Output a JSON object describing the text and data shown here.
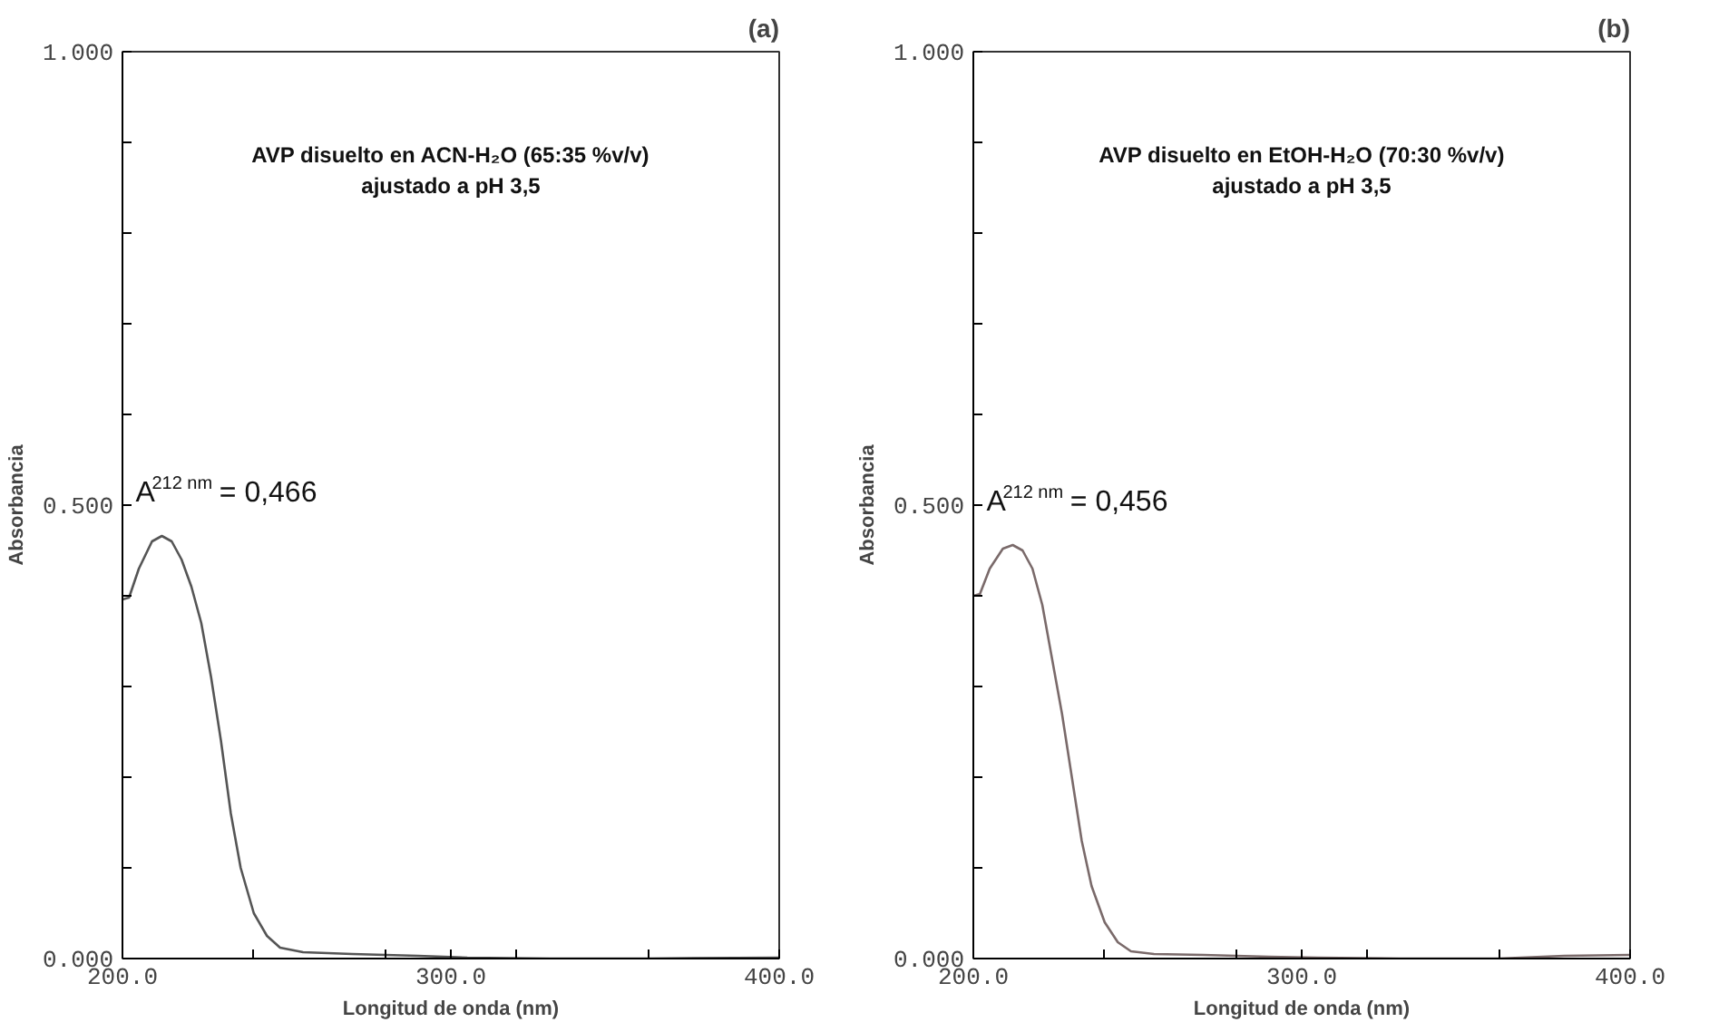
{
  "chart_data": [
    {
      "type": "line",
      "title": "(a)",
      "xlabel": "Longitud de onda (nm)",
      "ylabel": "Absorbancia",
      "x": [
        200,
        202,
        205,
        209,
        212,
        215,
        218,
        221,
        224,
        227,
        230,
        233,
        236,
        240,
        244,
        248,
        255,
        270,
        290,
        305,
        330,
        360,
        400
      ],
      "series": [
        {
          "color": "#555555",
          "values": [
            0.396,
            0.398,
            0.43,
            0.46,
            0.466,
            0.46,
            0.44,
            0.41,
            0.37,
            0.31,
            0.24,
            0.16,
            0.1,
            0.05,
            0.025,
            0.012,
            0.007,
            0.005,
            0.003,
            0.001,
            0.0,
            0.0,
            0.001
          ]
        }
      ],
      "xlim": [
        200,
        400
      ],
      "ylim": [
        0,
        1
      ],
      "xticks": [
        {
          "value": 200,
          "label": "200.0"
        },
        {
          "value": 240,
          "label": null
        },
        {
          "value": 280,
          "label": null
        },
        {
          "value": 300,
          "label": "300.0"
        },
        {
          "value": 320,
          "label": null
        },
        {
          "value": 360,
          "label": null
        },
        {
          "value": 400,
          "label": "400.0"
        }
      ],
      "yticks": [
        {
          "value": 0,
          "label": "0.000"
        },
        {
          "value": 0.1,
          "label": null
        },
        {
          "value": 0.2,
          "label": null
        },
        {
          "value": 0.3,
          "label": null
        },
        {
          "value": 0.4,
          "label": null
        },
        {
          "value": 0.5,
          "label": "0.500"
        },
        {
          "value": 0.6,
          "label": null
        },
        {
          "value": 0.7,
          "label": null
        },
        {
          "value": 0.8,
          "label": null
        },
        {
          "value": 0.9,
          "label": null
        },
        {
          "value": 1,
          "label": "1.000"
        }
      ],
      "grid": false,
      "marker": "none",
      "line_style": "solid",
      "annotations": [
        "AVP disuelto en ACN-H₂O (65:35 %v/v)\najustado a pH 3,5",
        {
          "text": "A$^{212 nm}$= 0,466",
          "x": 212,
          "y": 0.466
        }
      ]
    },
    {
      "type": "line",
      "title": "(b)",
      "xlabel": "Longitud de onda (nm)",
      "ylabel": "Absorbancia",
      "x": [
        200,
        202,
        205,
        209,
        212,
        215,
        218,
        221,
        224,
        227,
        230,
        233,
        236,
        240,
        244,
        248,
        255,
        270,
        290,
        305,
        330,
        360,
        380,
        400
      ],
      "series": [
        {
          "color": "#7a6a6a",
          "values": [
            0.4,
            0.402,
            0.43,
            0.452,
            0.456,
            0.45,
            0.43,
            0.39,
            0.33,
            0.27,
            0.2,
            0.13,
            0.08,
            0.04,
            0.018,
            0.008,
            0.005,
            0.004,
            0.002,
            0.001,
            0.0,
            0.0,
            0.003,
            0.004
          ]
        }
      ],
      "xlim": [
        200,
        400
      ],
      "ylim": [
        0,
        1
      ],
      "xticks": [
        {
          "value": 200,
          "label": "200.0"
        },
        {
          "value": 240,
          "label": null
        },
        {
          "value": 280,
          "label": null
        },
        {
          "value": 300,
          "label": "300.0"
        },
        {
          "value": 320,
          "label": null
        },
        {
          "value": 360,
          "label": null
        },
        {
          "value": 400,
          "label": "400.0"
        }
      ],
      "yticks": [
        {
          "value": 0,
          "label": "0.000"
        },
        {
          "value": 0.1,
          "label": null
        },
        {
          "value": 0.2,
          "label": null
        },
        {
          "value": 0.3,
          "label": null
        },
        {
          "value": 0.4,
          "label": null
        },
        {
          "value": 0.5,
          "label": "0.500"
        },
        {
          "value": 0.6,
          "label": null
        },
        {
          "value": 0.7,
          "label": null
        },
        {
          "value": 0.8,
          "label": null
        },
        {
          "value": 0.9,
          "label": null
        },
        {
          "value": 1,
          "label": "1.000"
        }
      ],
      "grid": false,
      "marker": "none",
      "line_style": "solid",
      "annotations": [
        "AVP disuelto en EtOH-H₂O (70:30 %v/v)\najustado a pH 3,5",
        {
          "text": "A$^{212 nm}$= 0,456",
          "x": 212,
          "y": 0.456
        }
      ]
    }
  ]
}
